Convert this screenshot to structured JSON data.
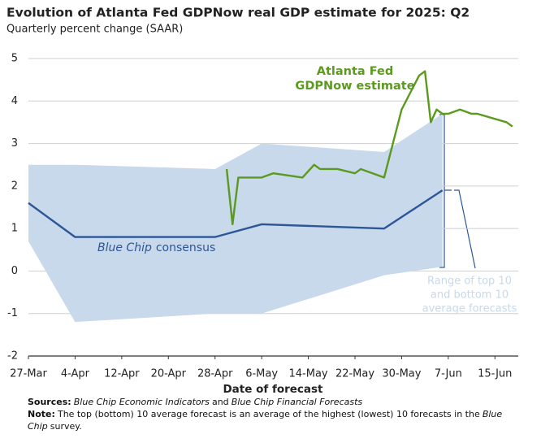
{
  "chart_data": {
    "type": "line",
    "title": "Evolution of Atlanta Fed GDPNow real GDP estimate for 2025: Q2",
    "subtitle": "Quarterly percent change (SAAR)",
    "xlabel": "Date of forecast",
    "xlim": [
      "27-Mar",
      "19-Jun"
    ],
    "xticks": [
      "27-Mar",
      "4-Apr",
      "12-Apr",
      "20-Apr",
      "28-Apr",
      "6-May",
      "14-May",
      "22-May",
      "30-May",
      "7-Jun",
      "15-Jun"
    ],
    "ylim": [
      -2,
      5
    ],
    "yticks": [
      -2,
      -1,
      0,
      1,
      2,
      3,
      4,
      5
    ],
    "grid": true,
    "series": [
      {
        "type": "area",
        "color": "#c7d9ea",
        "label": [
          "Range of top 10",
          "and bottom 10",
          "average forecasts"
        ],
        "x": [
          "27-Mar",
          "4-Apr",
          "28-Apr",
          "6-May",
          "27-May",
          "6-Jun"
        ],
        "upper": [
          2.5,
          2.5,
          2.4,
          3.0,
          2.8,
          3.7
        ],
        "lower": [
          0.7,
          -1.2,
          -1.0,
          -1.0,
          -0.1,
          0.1
        ]
      },
      {
        "type": "line",
        "color": "#2c5697",
        "label_italic": "Blue Chip",
        "label": "consensus",
        "x": [
          "27-Mar",
          "4-Apr",
          "28-Apr",
          "6-May",
          "27-May",
          "6-Jun"
        ],
        "values": [
          1.6,
          0.8,
          0.8,
          1.1,
          1.0,
          1.9
        ]
      },
      {
        "type": "line",
        "color": "#5b9a1e",
        "label": [
          "Atlanta Fed",
          "GDPNow estimate"
        ],
        "x": [
          "30-Apr",
          "1-May",
          "2-May",
          "6-May",
          "8-May",
          "13-May",
          "15-May",
          "16-May",
          "19-May",
          "22-May",
          "23-May",
          "27-May",
          "30-May",
          "2-Jun",
          "3-Jun",
          "4-Jun",
          "5-Jun",
          "6-Jun",
          "7-Jun",
          "9-Jun",
          "11-Jun",
          "12-Jun",
          "17-Jun",
          "18-Jun"
        ],
        "values": [
          2.4,
          1.1,
          2.2,
          2.2,
          2.3,
          2.2,
          2.5,
          2.4,
          2.4,
          2.3,
          2.4,
          2.2,
          3.8,
          4.6,
          4.7,
          3.5,
          3.8,
          3.7,
          3.7,
          3.8,
          3.7,
          3.7,
          3.5,
          3.4
        ]
      }
    ]
  },
  "footer": {
    "sources": {
      "label": "Sources:",
      "parts": [
        {
          "text": "Blue Chip Economic Indicators",
          "italic": true
        },
        {
          "text": "and"
        },
        {
          "text": "Blue Chip Financial Forecasts",
          "italic": true
        }
      ]
    },
    "note": {
      "label": "Note:",
      "parts": [
        {
          "text": "The top (bottom) 10 average forecast is an average of the highest (lowest) 10 forecasts in the"
        },
        {
          "text": "Blue Chip",
          "italic": true
        },
        {
          "text": "survey."
        }
      ]
    }
  }
}
